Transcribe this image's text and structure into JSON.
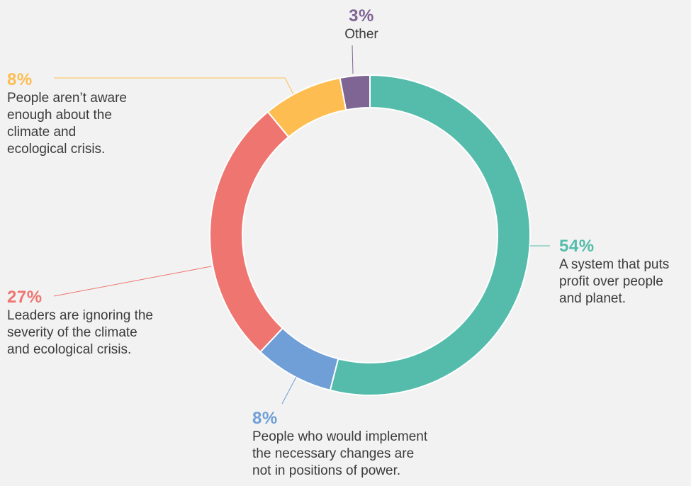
{
  "chart_data": {
    "type": "pie",
    "slices": [
      {
        "value": 54,
        "label": "54%",
        "description": "A system that puts\nprofit over people\nand planet.",
        "color": "#55bcab"
      },
      {
        "value": 8,
        "label": "8%",
        "description": "People who would implement\nthe necessary changes are\nnot in positions of power.",
        "color": "#6f9fd6"
      },
      {
        "value": 27,
        "label": "27%",
        "description": "Leaders are ignoring the\nseverity of the  climate\nand ecological crisis.",
        "color": "#ef7570"
      },
      {
        "value": 8,
        "label": "8%",
        "description": "People aren’t aware\nenough about the\nclimate and\necological crisis.",
        "color": "#fdbd50"
      },
      {
        "value": 3,
        "label": "3%",
        "description": "Other",
        "color": "#7f6594"
      }
    ],
    "donut": true
  }
}
